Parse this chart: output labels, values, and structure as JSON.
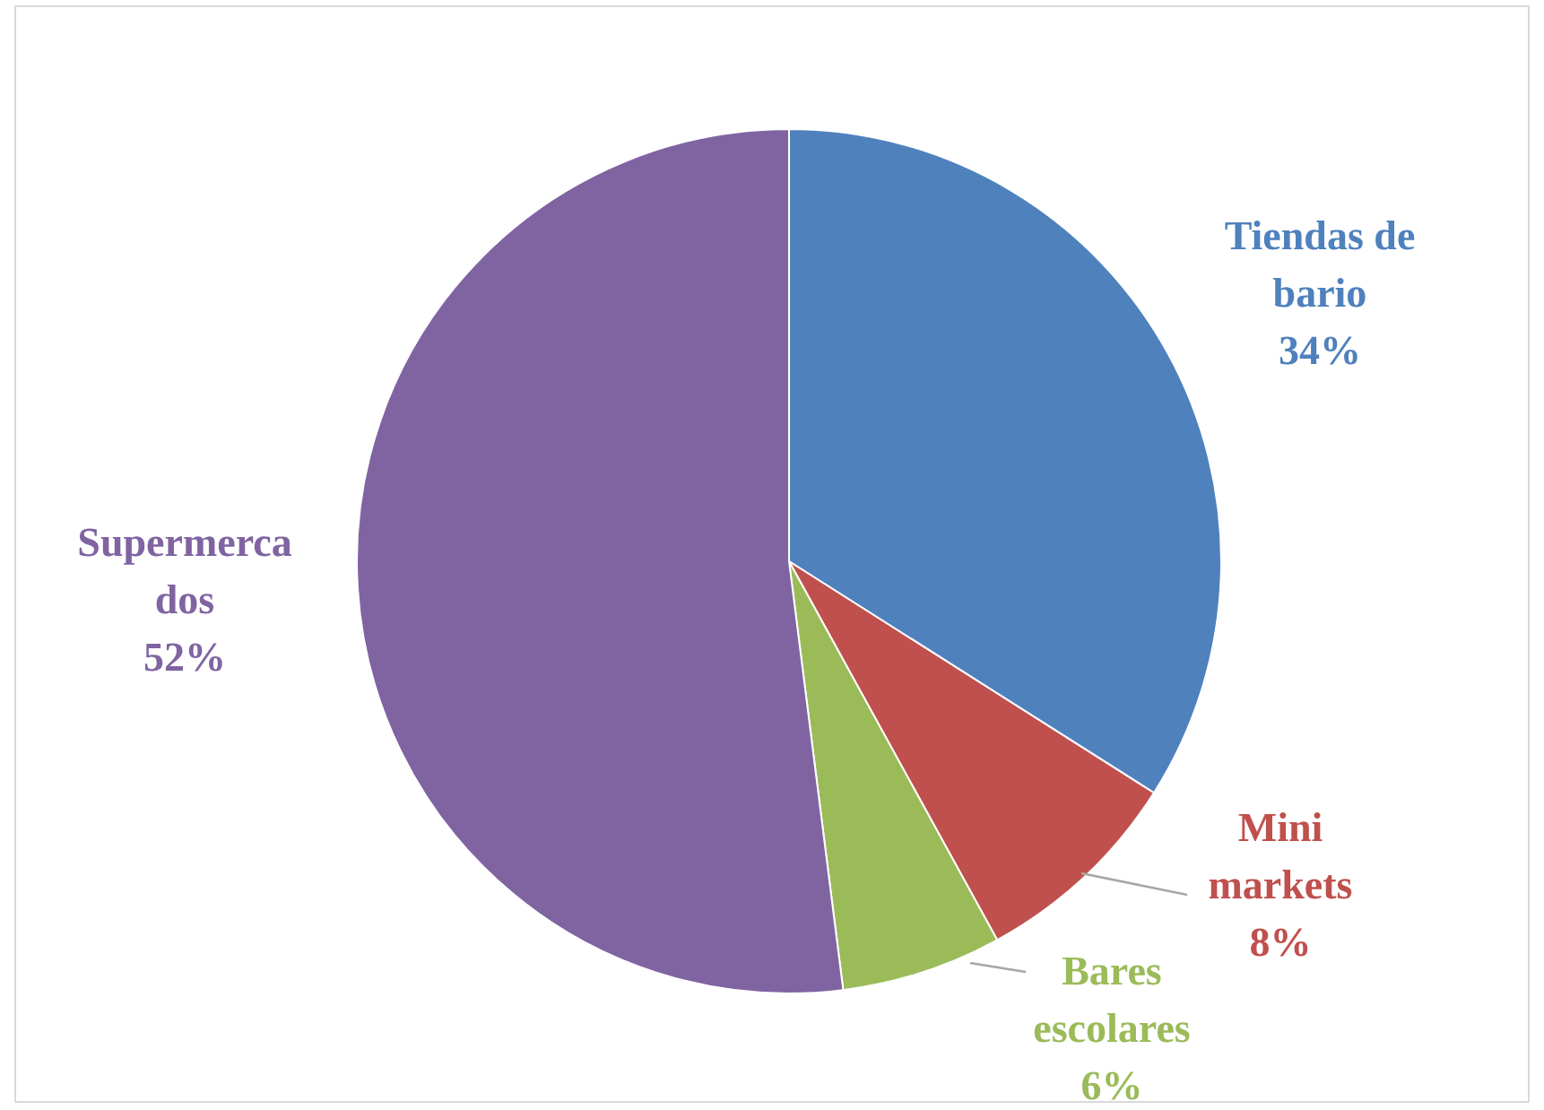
{
  "chart_data": {
    "type": "pie",
    "categories": [
      "Tiendas de bario",
      "Mini markets",
      "Bares escolares",
      "Supermercados"
    ],
    "values": [
      34,
      8,
      6,
      52
    ],
    "colors": [
      "#4f81bd",
      "#c0504d",
      "#9bbb59",
      "#8064a2"
    ],
    "value_labels": [
      "34%",
      "8%",
      "6%",
      "52%"
    ]
  }
}
